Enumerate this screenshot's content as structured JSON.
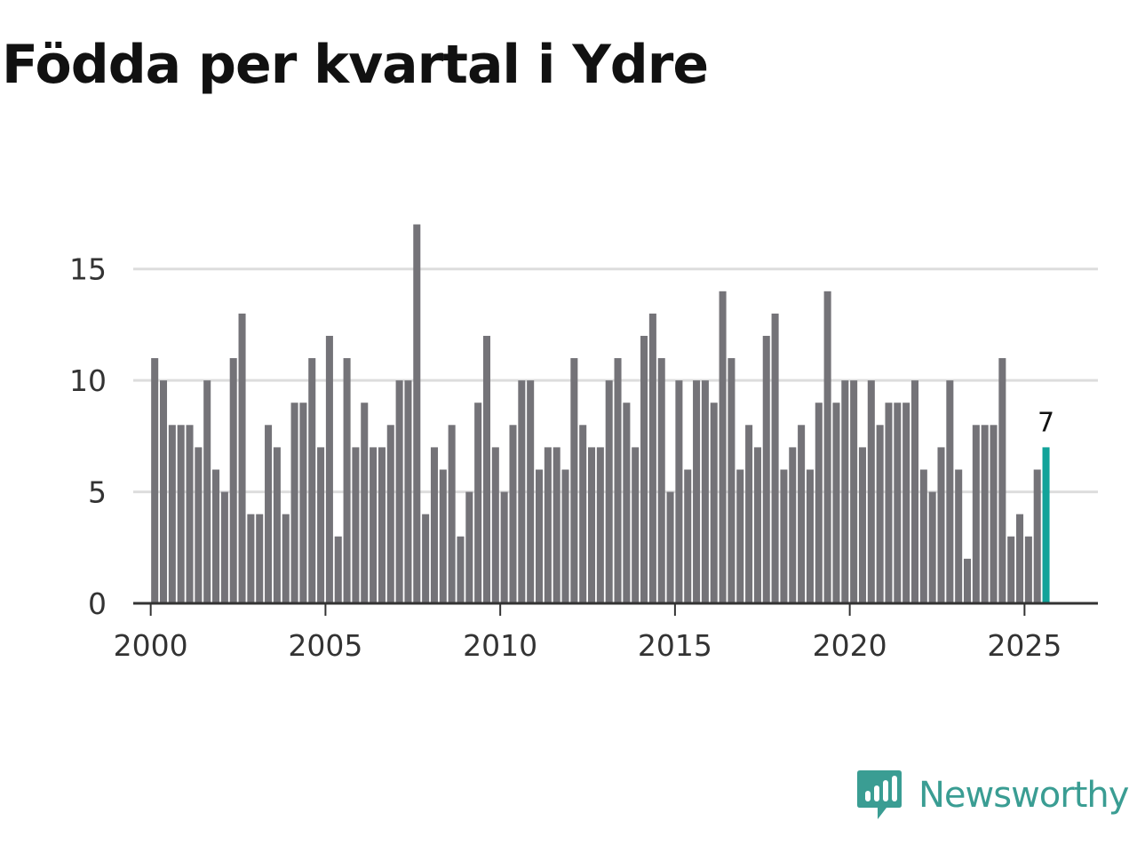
{
  "title": "Födda per kvartal i Ydre",
  "brand": {
    "name": "Newsworthy",
    "icon": "newsworthy-logo-icon",
    "color": "#3a9d93"
  },
  "colors": {
    "bar": "#747378",
    "highlight": "#12a39a",
    "grid": "#dddddd",
    "axis": "#333333"
  },
  "chart_data": {
    "type": "bar",
    "title": "Födda per kvartal i Ydre",
    "xlabel": "",
    "ylabel": "",
    "start_year": 2000,
    "periods_per_year": 4,
    "xlim": [
      1999.5,
      2027.1
    ],
    "x_ticks": [
      2000,
      2005,
      2010,
      2015,
      2020,
      2025
    ],
    "y_ticks": [
      0,
      5,
      10,
      15
    ],
    "ylim": [
      0,
      17.5
    ],
    "grid": true,
    "values": [
      11,
      10,
      8,
      8,
      8,
      7,
      10,
      6,
      5,
      11,
      13,
      4,
      4,
      8,
      7,
      4,
      9,
      9,
      11,
      7,
      12,
      3,
      11,
      7,
      9,
      7,
      7,
      8,
      10,
      10,
      17,
      4,
      7,
      6,
      8,
      3,
      5,
      9,
      12,
      7,
      5,
      8,
      10,
      10,
      6,
      7,
      7,
      6,
      11,
      8,
      7,
      7,
      10,
      11,
      9,
      7,
      12,
      13,
      11,
      5,
      10,
      6,
      10,
      10,
      9,
      14,
      11,
      6,
      8,
      7,
      12,
      13,
      6,
      7,
      8,
      6,
      9,
      14,
      9,
      10,
      10,
      7,
      10,
      8,
      9,
      9,
      9,
      10,
      6,
      5,
      7,
      10,
      6,
      2,
      8,
      8,
      8,
      11,
      3,
      4,
      3,
      6,
      7
    ],
    "highlight_last": true,
    "annotation": {
      "label": "7",
      "value": 7
    }
  }
}
